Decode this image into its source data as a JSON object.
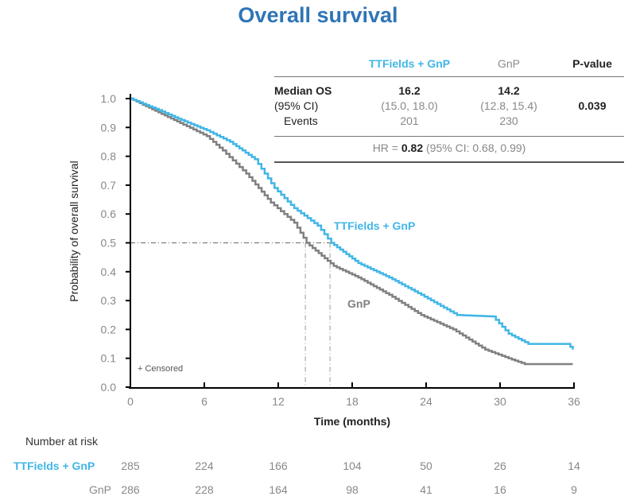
{
  "title": "Overall survival",
  "table": {
    "headers": [
      "TTFields + GnP",
      "GnP",
      "P-value"
    ],
    "rows": [
      {
        "label": "Median OS",
        "tt": "16.2",
        "gnp": "14.2",
        "p": ""
      },
      {
        "label": "(95% CI)",
        "tt": "(15.0, 18.0)",
        "gnp": "(12.8, 15.4)",
        "p": "0.039"
      },
      {
        "label": "Events",
        "tt": "201",
        "gnp": "230",
        "p": ""
      }
    ],
    "hr_prefix": "HR = ",
    "hr_value": "0.82",
    "hr_ci": " (95% CI: 0.68, 0.99)"
  },
  "colors": {
    "tt": "#41b6e6",
    "gnp": "#808080",
    "title": "#2e75b6"
  },
  "risk_table": {
    "title": "Number at risk",
    "rows": [
      {
        "label": "TTFields + GnP",
        "values": [
          "285",
          "224",
          "166",
          "104",
          "50",
          "26",
          "14"
        ]
      },
      {
        "label": "GnP",
        "values": [
          "286",
          "228",
          "164",
          "98",
          "41",
          "16",
          "9"
        ]
      }
    ]
  },
  "chart_data": {
    "type": "line",
    "title": "Overall survival",
    "xlabel": "Time (months)",
    "ylabel": "Probability of overall survival",
    "xlim": [
      0,
      36
    ],
    "ylim": [
      0,
      1.0
    ],
    "xticks": [
      0,
      6,
      12,
      18,
      24,
      30,
      36
    ],
    "yticks": [
      "0.0",
      "0.1",
      "0.2",
      "0.3",
      "0.4",
      "0.5",
      "0.6",
      "0.7",
      "0.8",
      "0.9",
      "1.0"
    ],
    "grid": false,
    "legend": "inline-labels",
    "annotations": [
      "+ Censored"
    ],
    "median_reference": {
      "y": 0.5,
      "x_values": [
        14.2,
        16.2
      ]
    },
    "series": [
      {
        "name": "TTFields + GnP",
        "label": "TTFields + GnP",
        "x": [
          0,
          2.3,
          3.9,
          6.2,
          8.1,
          10.1,
          11.7,
          13.3,
          15.2,
          16.3,
          18.5,
          21,
          23.6,
          26.5,
          29.4,
          30.7,
          32.3,
          35.5,
          35.9
        ],
        "y": [
          1.0,
          0.96,
          0.93,
          0.89,
          0.85,
          0.79,
          0.69,
          0.62,
          0.56,
          0.5,
          0.43,
          0.38,
          0.32,
          0.25,
          0.245,
          0.185,
          0.15,
          0.15,
          0.13
        ]
      },
      {
        "name": "GnP",
        "label": "GnP",
        "x": [
          0,
          4.3,
          6.2,
          7.5,
          9.4,
          11.4,
          13.3,
          14.3,
          16.5,
          18.5,
          21,
          23.6,
          26.2,
          28.8,
          30.7,
          32,
          35.9
        ],
        "y": [
          1.0,
          0.91,
          0.87,
          0.82,
          0.74,
          0.64,
          0.57,
          0.5,
          0.42,
          0.38,
          0.32,
          0.25,
          0.2,
          0.13,
          0.1,
          0.08,
          0.08
        ]
      }
    ]
  }
}
